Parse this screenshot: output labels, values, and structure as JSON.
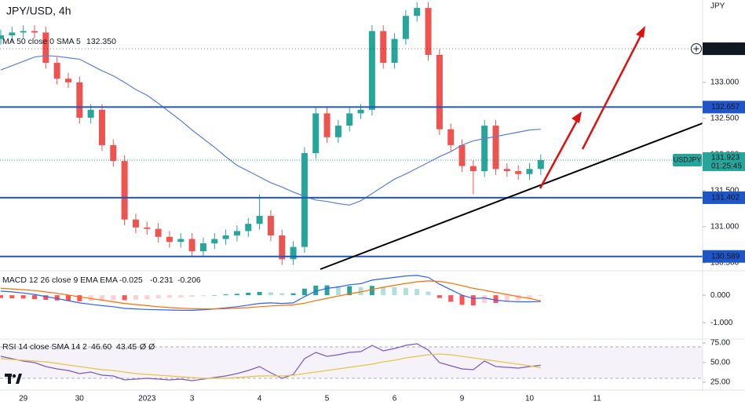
{
  "chart_data": [
    {
      "type": "candlestick",
      "title": "JPY/USD, 4h",
      "currency": "JPY",
      "categories": [
        null,
        null,
        "29",
        null,
        null,
        null,
        null,
        "30",
        null,
        null,
        null,
        null,
        null,
        "2023",
        null,
        null,
        null,
        "3",
        null,
        null,
        null,
        null,
        null,
        "4",
        null,
        null,
        null,
        null,
        null,
        "5",
        null,
        null,
        null,
        null,
        null,
        "6",
        null,
        null,
        null,
        null,
        null,
        "9",
        null,
        null,
        null,
        null,
        null,
        "10",
        null,
        null,
        null,
        null,
        null,
        "11"
      ],
      "open": [
        133.6,
        133.65,
        133.69,
        133.71,
        133.69,
        133.27,
        133.05,
        133.0,
        132.51,
        132.62,
        132.13,
        131.91,
        131.1,
        130.99,
        130.97,
        130.86,
        130.79,
        130.83,
        130.66,
        130.77,
        130.83,
        130.88,
        130.94,
        131.04,
        131.15,
        130.88,
        130.55,
        130.72,
        132.02,
        132.57,
        132.24,
        132.4,
        132.57,
        132.62,
        133.71,
        133.27,
        133.6,
        133.92,
        134.03,
        133.38,
        132.35,
        132.13,
        131.84,
        131.77,
        132.4,
        131.8,
        131.77,
        131.73,
        131.8,
        null,
        null,
        null,
        null,
        null
      ],
      "high": [
        133.73,
        133.77,
        133.79,
        133.79,
        133.77,
        133.35,
        133.13,
        133.08,
        132.7,
        132.7,
        132.21,
        131.99,
        131.18,
        131.07,
        131.05,
        130.94,
        130.91,
        130.91,
        130.85,
        130.91,
        130.96,
        131.02,
        131.12,
        131.45,
        131.23,
        130.96,
        130.8,
        132.1,
        132.65,
        132.65,
        132.48,
        132.65,
        132.7,
        133.79,
        133.79,
        133.68,
        134.0,
        134.11,
        134.11,
        133.46,
        132.43,
        132.21,
        131.92,
        132.48,
        132.48,
        131.88,
        131.85,
        131.88,
        132.0,
        null,
        null,
        null,
        null,
        null
      ],
      "low": [
        133.52,
        133.57,
        133.61,
        133.61,
        133.19,
        132.97,
        132.92,
        132.43,
        132.43,
        132.05,
        131.83,
        131.02,
        130.91,
        130.89,
        130.78,
        130.71,
        130.71,
        130.58,
        130.58,
        130.69,
        130.75,
        130.8,
        130.86,
        130.96,
        130.8,
        130.47,
        130.47,
        130.64,
        131.94,
        132.16,
        132.16,
        132.32,
        132.49,
        132.54,
        133.19,
        133.19,
        133.52,
        133.84,
        133.3,
        132.27,
        132.05,
        131.76,
        131.45,
        131.69,
        131.72,
        131.69,
        131.65,
        131.65,
        131.72,
        null,
        null,
        null,
        null,
        null
      ],
      "close": [
        133.65,
        133.69,
        133.71,
        133.69,
        133.27,
        133.05,
        133.0,
        132.51,
        132.62,
        132.13,
        131.91,
        131.1,
        130.99,
        130.97,
        130.86,
        130.79,
        130.83,
        130.66,
        130.77,
        130.83,
        130.88,
        130.94,
        131.04,
        131.15,
        130.88,
        130.55,
        130.72,
        132.02,
        132.57,
        132.24,
        132.4,
        132.57,
        132.62,
        133.71,
        133.27,
        133.6,
        133.92,
        134.03,
        133.38,
        132.35,
        132.13,
        131.84,
        131.77,
        132.4,
        131.8,
        131.77,
        131.73,
        131.8,
        131.923,
        null,
        null,
        null,
        null,
        null
      ],
      "up_color": "#26a69a",
      "down_color": "#ef5350",
      "ma": {
        "label": "MA 50 close 0 SMA 5",
        "value_label": "132.350",
        "color": "#5b7fd6",
        "values": [
          133.17,
          133.23,
          133.29,
          133.35,
          133.37,
          133.36,
          133.34,
          133.32,
          133.24,
          133.16,
          133.09,
          133.0,
          132.9,
          132.82,
          132.71,
          132.59,
          132.47,
          132.34,
          132.22,
          132.1,
          131.97,
          131.85,
          131.77,
          131.69,
          131.61,
          131.55,
          131.48,
          131.42,
          131.37,
          131.35,
          131.32,
          131.3,
          131.36,
          131.46,
          131.56,
          131.66,
          131.73,
          131.81,
          131.89,
          131.97,
          132.04,
          132.13,
          132.19,
          132.22,
          132.25,
          132.28,
          132.31,
          132.34,
          132.35,
          null,
          null,
          null,
          null,
          null
        ]
      },
      "levels": [
        {
          "value": 133.465,
          "label": "133.465",
          "color": "#131722",
          "line_style": "dotted"
        },
        {
          "value": 132.657,
          "label": "132.657",
          "color": "#1e56c8",
          "line_style": "solid"
        },
        {
          "value": 131.402,
          "label": "131.402",
          "color": "#1e56c8",
          "line_style": "solid"
        },
        {
          "value": 130.589,
          "label": "130.589",
          "color": "#1e56c8",
          "line_style": "solid"
        }
      ],
      "last_price": {
        "symbol": "USDJPY",
        "value": 131.923,
        "label": "131.923",
        "countdown": "01:25:45",
        "color": "#26a69a"
      },
      "ylim": [
        130.39,
        134.14
      ],
      "yticks": [
        {
          "value": 130.5,
          "label": "130.500"
        },
        {
          "value": 131,
          "label": "131.000"
        },
        {
          "value": 131.5,
          "label": "131.500"
        },
        {
          "value": 132,
          "label": "132.000"
        },
        {
          "value": 132.5,
          "label": "132.500"
        },
        {
          "value": 133,
          "label": "133.000"
        }
      ]
    },
    {
      "type": "combo",
      "label": "MACD 12 26 close 9 EMA EMA",
      "legend_values": [
        "-0.025",
        "-0.231",
        "-0.206"
      ],
      "hist": [
        -0.1,
        -0.11,
        -0.12,
        -0.14,
        -0.17,
        -0.19,
        -0.21,
        -0.22,
        -0.21,
        -0.2,
        -0.18,
        -0.18,
        -0.16,
        -0.14,
        -0.11,
        -0.09,
        -0.08,
        -0.06,
        -0.03,
        0,
        0.03,
        0.05,
        0.09,
        0.12,
        0.11,
        0.07,
        0.07,
        0.24,
        0.35,
        0.36,
        0.33,
        0.33,
        0.3,
        0.34,
        0.31,
        0.29,
        0.27,
        0.23,
        0.13,
        -0.1,
        -0.24,
        -0.35,
        -0.37,
        -0.28,
        -0.28,
        -0.25,
        -0.19,
        -0.12,
        -0.025,
        null,
        null,
        null,
        null,
        null
      ],
      "macd": [
        0.15,
        0.12,
        0.08,
        0.03,
        -0.05,
        -0.12,
        -0.2,
        -0.28,
        -0.33,
        -0.38,
        -0.42,
        -0.48,
        -0.5,
        -0.52,
        -0.53,
        -0.54,
        -0.55,
        -0.55,
        -0.53,
        -0.5,
        -0.46,
        -0.42,
        -0.36,
        -0.3,
        -0.28,
        -0.3,
        -0.28,
        -0.05,
        0.15,
        0.25,
        0.3,
        0.38,
        0.42,
        0.55,
        0.6,
        0.65,
        0.7,
        0.72,
        0.65,
        0.4,
        0.2,
        0,
        -0.12,
        -0.1,
        -0.18,
        -0.22,
        -0.24,
        -0.24,
        -0.231,
        null,
        null,
        null,
        null,
        null
      ],
      "signal": [
        0.25,
        0.23,
        0.2,
        0.17,
        0.12,
        0.07,
        0.01,
        -0.06,
        -0.12,
        -0.18,
        -0.24,
        -0.3,
        -0.34,
        -0.38,
        -0.42,
        -0.45,
        -0.47,
        -0.49,
        -0.5,
        -0.5,
        -0.49,
        -0.47,
        -0.45,
        -0.42,
        -0.39,
        -0.37,
        -0.35,
        -0.29,
        -0.2,
        -0.11,
        -0.03,
        0.05,
        0.12,
        0.21,
        0.29,
        0.36,
        0.43,
        0.49,
        0.52,
        0.5,
        0.44,
        0.35,
        0.25,
        0.18,
        0.1,
        0.03,
        -0.05,
        -0.12,
        -0.206,
        null,
        null,
        null,
        null,
        null
      ],
      "hist_colors": [
        "#26a69a",
        "#b2dfdb",
        "#ff5252",
        "#ffcdd2"
      ],
      "macd_color": "#2962ff",
      "signal_color": "#ff6d00",
      "ylim": [
        -1.54,
        0.89
      ],
      "yticks": [
        {
          "value": -1,
          "label": "-1.000"
        },
        {
          "value": 0,
          "label": "0.000"
        }
      ]
    },
    {
      "type": "line",
      "label": "RSI 14 close SMA 14 2",
      "legend_values": [
        "46.60",
        "43.45"
      ],
      "flags": "Ø Ø",
      "series": [
        {
          "color": "#7e57c2",
          "values": [
            58,
            55,
            52,
            50,
            45,
            42,
            40,
            36,
            38,
            34,
            33,
            28,
            29,
            30,
            29,
            28,
            29,
            27,
            29,
            31,
            33,
            36,
            40,
            45,
            37,
            30,
            35,
            55,
            63,
            58,
            60,
            63,
            64,
            72,
            65,
            68,
            72,
            74,
            66,
            50,
            46,
            42,
            41,
            52,
            45,
            44,
            43,
            45,
            46.6,
            null,
            null,
            null,
            null,
            null
          ]
        },
        {
          "color": "#e8c547",
          "values": [
            55,
            54,
            53,
            52,
            51,
            49,
            47,
            45,
            43,
            41,
            40,
            38,
            36,
            35,
            34,
            33,
            32,
            31,
            30,
            30,
            30,
            31,
            32,
            33,
            33,
            33,
            34,
            36,
            38,
            40,
            42,
            44,
            46,
            48,
            51,
            53,
            56,
            58,
            60,
            61,
            60,
            58,
            56,
            54,
            52,
            50,
            48,
            46,
            43.45,
            null,
            null,
            null,
            null,
            null
          ]
        }
      ],
      "band": [
        30,
        70
      ],
      "band_color": "#7e57c2",
      "ylim": [
        15,
        80
      ],
      "yticks": [
        {
          "value": 25,
          "label": "25.00"
        },
        {
          "value": 50,
          "label": "50.00"
        },
        {
          "value": 75,
          "label": "75.00"
        }
      ]
    }
  ]
}
